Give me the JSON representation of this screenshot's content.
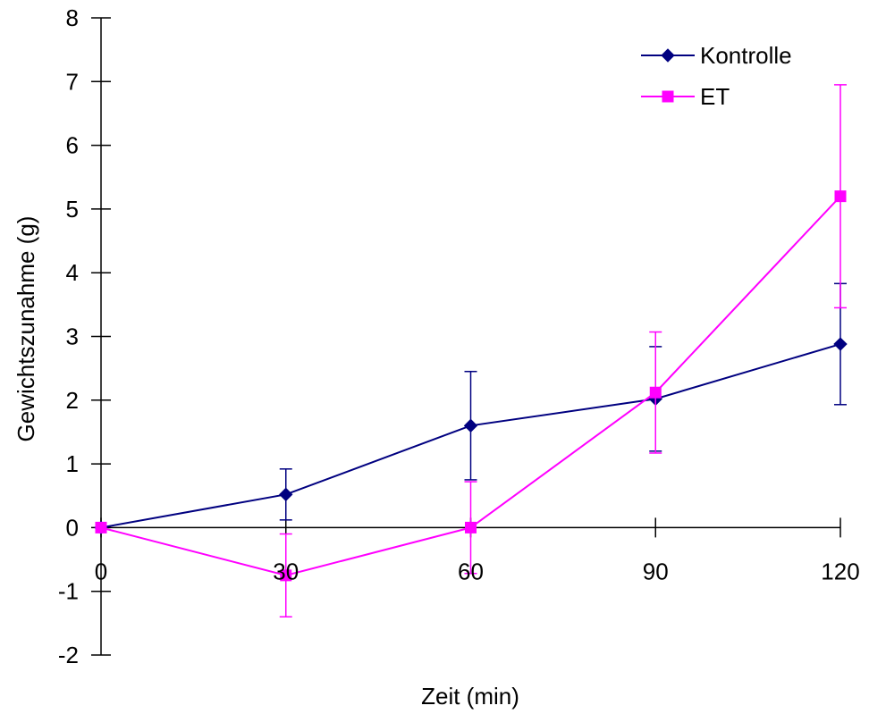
{
  "chart_data": {
    "type": "line",
    "title": "",
    "xlabel": "Zeit (min)",
    "ylabel": "Gewichtszunahme (g)",
    "x": [
      0,
      30,
      60,
      90,
      120
    ],
    "xticks": [
      "0",
      "30",
      "60",
      "90",
      "120"
    ],
    "xlim": [
      0,
      120
    ],
    "ylim": [
      -2,
      8
    ],
    "yticks": [
      "-2",
      "-1",
      "0",
      "1",
      "2",
      "3",
      "4",
      "5",
      "6",
      "7",
      "8"
    ],
    "grid": false,
    "legend_position": "top-right",
    "series": [
      {
        "name": "Kontrolle",
        "color": "#000080",
        "marker": "diamond",
        "values": [
          0,
          0.52,
          1.6,
          2.02,
          2.88
        ],
        "errors": [
          0,
          0.4,
          0.85,
          0.82,
          0.95
        ]
      },
      {
        "name": "ET",
        "color": "#FF00FF",
        "marker": "square",
        "values": [
          0,
          -0.75,
          0,
          2.12,
          5.2
        ],
        "errors": [
          0,
          0.65,
          0.72,
          0.95,
          1.75
        ]
      }
    ]
  }
}
